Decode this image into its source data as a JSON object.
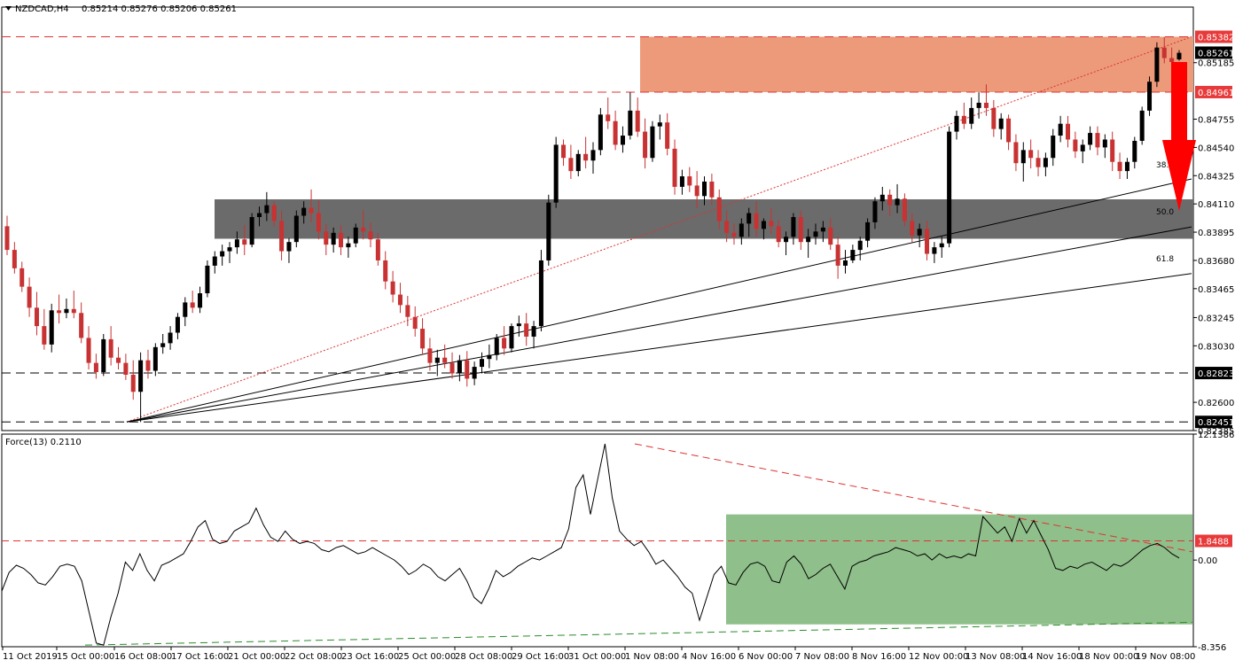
{
  "chart_data": [
    {
      "type": "candlestick",
      "title": "NZDCAD,H4",
      "ohlc_readout": "0.85214 0.85276 0.85206 0.85261",
      "ylim": [
        0.82385,
        0.85608
      ],
      "y_ticks": [
        "0.85382",
        "0.85261",
        "0.85185",
        "0.84961",
        "0.84755",
        "0.84540",
        "0.84325",
        "0.84110",
        "0.83895",
        "0.83680",
        "0.83465",
        "0.83245",
        "0.83030",
        "0.82823",
        "0.82600",
        "0.82451",
        "0.82385"
      ],
      "x_ticks": [
        "11 Oct 2019",
        "15 Oct 00:00",
        "16 Oct 08:00",
        "17 Oct 16:00",
        "21 Oct 00:00",
        "22 Oct 08:00",
        "23 Oct 16:00",
        "25 Oct 00:00",
        "28 Oct 08:00",
        "29 Oct 16:00",
        "31 Oct 00:00",
        "1 Nov 08:00",
        "4 Nov 16:00",
        "6 Nov 00:00",
        "7 Nov 08:00",
        "8 Nov 16:00",
        "12 Nov 00:00",
        "13 Nov 08:00",
        "14 Nov 16:00",
        "18 Nov 00:00",
        "19 Nov 08:00"
      ],
      "price_flags": [
        {
          "value": "0.85382",
          "color": "#e83a3a"
        },
        {
          "value": "0.85261",
          "color": "#000000"
        },
        {
          "value": "0.84961",
          "color": "#e83a3a"
        },
        {
          "value": "0.82823",
          "color": "#000000"
        },
        {
          "value": "0.82451",
          "color": "#000000"
        }
      ],
      "horizontal_levels": [
        0.85382,
        0.84961,
        0.82823,
        0.82451
      ],
      "zones": [
        {
          "name": "resistance-zone",
          "from": 0.84961,
          "to": 0.85382,
          "color": "#ec9a7a"
        },
        {
          "name": "support-zone",
          "from": 0.83845,
          "to": 0.84145,
          "color": "#6b6b6b"
        }
      ],
      "fib_labels": [
        "38.2",
        "50.0",
        "61.8"
      ],
      "candles": [
        [
          0.8394,
          0.8402,
          0.8372,
          0.8376
        ],
        [
          0.8376,
          0.8382,
          0.8358,
          0.8362
        ],
        [
          0.8362,
          0.8367,
          0.8344,
          0.8348
        ],
        [
          0.8348,
          0.8355,
          0.8325,
          0.8332
        ],
        [
          0.8332,
          0.8344,
          0.8311,
          0.8318
        ],
        [
          0.8318,
          0.8331,
          0.83,
          0.8304
        ],
        [
          0.8304,
          0.8335,
          0.8298,
          0.833
        ],
        [
          0.833,
          0.8342,
          0.832,
          0.8328
        ],
        [
          0.8328,
          0.8339,
          0.8324,
          0.8331
        ],
        [
          0.8331,
          0.8345,
          0.8324,
          0.8328
        ],
        [
          0.8328,
          0.8336,
          0.8305,
          0.8309
        ],
        [
          0.8309,
          0.8318,
          0.8285,
          0.829
        ],
        [
          0.829,
          0.8297,
          0.8278,
          0.8283
        ],
        [
          0.8283,
          0.8312,
          0.828,
          0.8308
        ],
        [
          0.8308,
          0.8318,
          0.8288,
          0.8294
        ],
        [
          0.8294,
          0.8302,
          0.8285,
          0.829
        ],
        [
          0.829,
          0.8297,
          0.8277,
          0.8281
        ],
        [
          0.8281,
          0.8292,
          0.8262,
          0.8268
        ],
        [
          0.8268,
          0.8298,
          0.8245,
          0.8292
        ],
        [
          0.8292,
          0.83,
          0.8278,
          0.8284
        ],
        [
          0.8284,
          0.8305,
          0.828,
          0.8302
        ],
        [
          0.8302,
          0.8312,
          0.8297,
          0.8305
        ],
        [
          0.8305,
          0.8318,
          0.83,
          0.8313
        ],
        [
          0.8313,
          0.8328,
          0.8308,
          0.8325
        ],
        [
          0.8325,
          0.834,
          0.8318,
          0.8336
        ],
        [
          0.8336,
          0.8345,
          0.8328,
          0.8332
        ],
        [
          0.8332,
          0.8348,
          0.8328,
          0.8343
        ],
        [
          0.8343,
          0.8368,
          0.834,
          0.8364
        ],
        [
          0.8364,
          0.8375,
          0.8358,
          0.8371
        ],
        [
          0.8371,
          0.838,
          0.8364,
          0.8375
        ],
        [
          0.8375,
          0.8382,
          0.8366,
          0.8378
        ],
        [
          0.8378,
          0.839,
          0.8373,
          0.8384
        ],
        [
          0.8384,
          0.8395,
          0.8372,
          0.838
        ],
        [
          0.838,
          0.8404,
          0.8378,
          0.8401
        ],
        [
          0.8401,
          0.8409,
          0.8394,
          0.8404
        ],
        [
          0.8404,
          0.842,
          0.8398,
          0.841
        ],
        [
          0.841,
          0.8413,
          0.8394,
          0.8398
        ],
        [
          0.8398,
          0.8406,
          0.8368,
          0.8375
        ],
        [
          0.8375,
          0.8385,
          0.8366,
          0.8382
        ],
        [
          0.8382,
          0.8406,
          0.8378,
          0.8402
        ],
        [
          0.8402,
          0.8413,
          0.8396,
          0.8408
        ],
        [
          0.8408,
          0.8422,
          0.8397,
          0.8404
        ],
        [
          0.8404,
          0.8414,
          0.8384,
          0.839
        ],
        [
          0.839,
          0.8396,
          0.8372,
          0.838
        ],
        [
          0.838,
          0.8393,
          0.8374,
          0.8389
        ],
        [
          0.8389,
          0.8395,
          0.8372,
          0.8378
        ],
        [
          0.8378,
          0.8386,
          0.837,
          0.8381
        ],
        [
          0.8381,
          0.8396,
          0.8378,
          0.8393
        ],
        [
          0.8393,
          0.8406,
          0.8384,
          0.839
        ],
        [
          0.839,
          0.8397,
          0.8378,
          0.8384
        ],
        [
          0.8384,
          0.8389,
          0.8364,
          0.8368
        ],
        [
          0.8368,
          0.8375,
          0.8346,
          0.8352
        ],
        [
          0.8352,
          0.836,
          0.8336,
          0.8342
        ],
        [
          0.8342,
          0.8351,
          0.8328,
          0.8334
        ],
        [
          0.8334,
          0.8341,
          0.8318,
          0.8325
        ],
        [
          0.8325,
          0.8333,
          0.831,
          0.8316
        ],
        [
          0.8316,
          0.8324,
          0.8296,
          0.8301
        ],
        [
          0.8301,
          0.8309,
          0.8284,
          0.829
        ],
        [
          0.829,
          0.83,
          0.828,
          0.8294
        ],
        [
          0.8294,
          0.8304,
          0.8286,
          0.829
        ],
        [
          0.829,
          0.8298,
          0.8278,
          0.8282
        ],
        [
          0.8282,
          0.8296,
          0.8276,
          0.8292
        ],
        [
          0.8292,
          0.8299,
          0.8272,
          0.8278
        ],
        [
          0.8278,
          0.8291,
          0.8273,
          0.8287
        ],
        [
          0.8287,
          0.8298,
          0.8282,
          0.8293
        ],
        [
          0.8293,
          0.8304,
          0.8286,
          0.8296
        ],
        [
          0.8296,
          0.8312,
          0.8292,
          0.8309
        ],
        [
          0.8309,
          0.8318,
          0.8296,
          0.8301
        ],
        [
          0.8301,
          0.832,
          0.8298,
          0.8318
        ],
        [
          0.8318,
          0.8326,
          0.831,
          0.832
        ],
        [
          0.832,
          0.8328,
          0.8303,
          0.831
        ],
        [
          0.831,
          0.8322,
          0.8301,
          0.8318
        ],
        [
          0.8318,
          0.8376,
          0.8314,
          0.8368
        ],
        [
          0.8368,
          0.8418,
          0.8364,
          0.8412
        ],
        [
          0.8412,
          0.8462,
          0.8408,
          0.8456
        ],
        [
          0.8456,
          0.846,
          0.844,
          0.8446
        ],
        [
          0.8446,
          0.8456,
          0.843,
          0.8436
        ],
        [
          0.8436,
          0.8452,
          0.8432,
          0.8449
        ],
        [
          0.8449,
          0.8462,
          0.8438,
          0.8444
        ],
        [
          0.8444,
          0.8458,
          0.8434,
          0.8452
        ],
        [
          0.8452,
          0.8484,
          0.8448,
          0.8479
        ],
        [
          0.8479,
          0.8492,
          0.8468,
          0.8474
        ],
        [
          0.8474,
          0.8482,
          0.8452,
          0.8456
        ],
        [
          0.8456,
          0.847,
          0.845,
          0.8463
        ],
        [
          0.8463,
          0.8496,
          0.846,
          0.8482
        ],
        [
          0.8482,
          0.8492,
          0.8462,
          0.8466
        ],
        [
          0.8466,
          0.8476,
          0.8438,
          0.8446
        ],
        [
          0.8446,
          0.8474,
          0.8443,
          0.847
        ],
        [
          0.847,
          0.8479,
          0.846,
          0.8473
        ],
        [
          0.8473,
          0.848,
          0.8448,
          0.8453
        ],
        [
          0.8453,
          0.846,
          0.8418,
          0.8424
        ],
        [
          0.8424,
          0.8437,
          0.8418,
          0.8432
        ],
        [
          0.8432,
          0.8439,
          0.842,
          0.8425
        ],
        [
          0.8425,
          0.8436,
          0.8408,
          0.8417
        ],
        [
          0.8417,
          0.8432,
          0.841,
          0.8428
        ],
        [
          0.8428,
          0.8434,
          0.841,
          0.8416
        ],
        [
          0.8416,
          0.8422,
          0.8392,
          0.8398
        ],
        [
          0.8398,
          0.8406,
          0.8382,
          0.8389
        ],
        [
          0.8389,
          0.8396,
          0.838,
          0.8386
        ],
        [
          0.8386,
          0.84,
          0.838,
          0.8396
        ],
        [
          0.8396,
          0.8408,
          0.8386,
          0.8404
        ],
        [
          0.8404,
          0.8413,
          0.8386,
          0.8392
        ],
        [
          0.8392,
          0.84,
          0.8384,
          0.8398
        ],
        [
          0.8398,
          0.8408,
          0.8388,
          0.8394
        ],
        [
          0.8394,
          0.8399,
          0.8378,
          0.8382
        ],
        [
          0.8382,
          0.839,
          0.8372,
          0.8386
        ],
        [
          0.8386,
          0.8404,
          0.838,
          0.8401
        ],
        [
          0.8401,
          0.8406,
          0.8376,
          0.8382
        ],
        [
          0.8382,
          0.8392,
          0.837,
          0.8386
        ],
        [
          0.8386,
          0.8396,
          0.838,
          0.839
        ],
        [
          0.839,
          0.8398,
          0.8382,
          0.8393
        ],
        [
          0.8393,
          0.84,
          0.8376,
          0.838
        ],
        [
          0.838,
          0.8386,
          0.8354,
          0.8364
        ],
        [
          0.8364,
          0.8376,
          0.8358,
          0.8368
        ],
        [
          0.8368,
          0.838,
          0.8366,
          0.8376
        ],
        [
          0.8376,
          0.8386,
          0.8368,
          0.8383
        ],
        [
          0.8383,
          0.84,
          0.8378,
          0.8397
        ],
        [
          0.8397,
          0.8416,
          0.8392,
          0.8413
        ],
        [
          0.8413,
          0.8424,
          0.8406,
          0.8418
        ],
        [
          0.8418,
          0.8422,
          0.8402,
          0.841
        ],
        [
          0.841,
          0.8426,
          0.8404,
          0.8415
        ],
        [
          0.8415,
          0.8419,
          0.8394,
          0.8398
        ],
        [
          0.8398,
          0.8404,
          0.8382,
          0.8387
        ],
        [
          0.8387,
          0.8396,
          0.8378,
          0.8392
        ],
        [
          0.8392,
          0.8398,
          0.8368,
          0.8373
        ],
        [
          0.8373,
          0.8382,
          0.8366,
          0.8378
        ],
        [
          0.8378,
          0.8386,
          0.837,
          0.8381
        ],
        [
          0.8381,
          0.847,
          0.8378,
          0.8466
        ],
        [
          0.8466,
          0.8482,
          0.846,
          0.8478
        ],
        [
          0.8478,
          0.8488,
          0.8468,
          0.8472
        ],
        [
          0.8472,
          0.8492,
          0.8468,
          0.8484
        ],
        [
          0.8484,
          0.8496,
          0.8476,
          0.8488
        ],
        [
          0.8488,
          0.8502,
          0.8478,
          0.8484
        ],
        [
          0.8484,
          0.849,
          0.8462,
          0.8468
        ],
        [
          0.8468,
          0.848,
          0.846,
          0.8476
        ],
        [
          0.8476,
          0.8479,
          0.8452,
          0.8458
        ],
        [
          0.8458,
          0.8464,
          0.8436,
          0.8442
        ],
        [
          0.8442,
          0.8458,
          0.8428,
          0.8452
        ],
        [
          0.8452,
          0.846,
          0.8438,
          0.8446
        ],
        [
          0.8446,
          0.8452,
          0.8432,
          0.8439
        ],
        [
          0.8439,
          0.845,
          0.8432,
          0.8446
        ],
        [
          0.8446,
          0.8468,
          0.844,
          0.8463
        ],
        [
          0.8463,
          0.8478,
          0.8458,
          0.8472
        ],
        [
          0.8472,
          0.8478,
          0.8454,
          0.846
        ],
        [
          0.846,
          0.8466,
          0.8446,
          0.8451
        ],
        [
          0.8451,
          0.846,
          0.8442,
          0.8456
        ],
        [
          0.8456,
          0.847,
          0.8452,
          0.8465
        ],
        [
          0.8465,
          0.847,
          0.8448,
          0.8454
        ],
        [
          0.8454,
          0.8464,
          0.8446,
          0.846
        ],
        [
          0.846,
          0.8466,
          0.8436,
          0.8443
        ],
        [
          0.8443,
          0.845,
          0.843,
          0.8436
        ],
        [
          0.8436,
          0.8446,
          0.843,
          0.8443
        ],
        [
          0.8443,
          0.8462,
          0.8438,
          0.8459
        ],
        [
          0.8459,
          0.8485,
          0.8456,
          0.8482
        ],
        [
          0.8482,
          0.8508,
          0.8478,
          0.8504
        ],
        [
          0.8504,
          0.8534,
          0.85,
          0.853
        ],
        [
          0.853,
          0.8538,
          0.8518,
          0.8522
        ],
        [
          0.8522,
          0.853,
          0.8516,
          0.8519
        ],
        [
          0.8521,
          0.8528,
          0.852,
          0.8526
        ]
      ],
      "force_index": {
        "title": "Force(13) 0.2110",
        "ylim": [
          -8.356,
          12.1386
        ],
        "y_ticks": [
          "12.1386",
          "0.00",
          "-8.356"
        ],
        "flag": {
          "value": "1.8488",
          "color": "#e83a3a"
        },
        "level": 1.8488,
        "zone": {
          "name": "force-zone",
          "from": -6.2,
          "to": 4.4,
          "color": "#8fbf8a"
        },
        "values": [
          -3.0,
          -1.2,
          -0.5,
          -0.8,
          -1.4,
          -2.2,
          -2.4,
          -1.6,
          -0.6,
          -0.4,
          -0.6,
          -2.0,
          -5.0,
          -8.0,
          -8.2,
          -5.5,
          -3.2,
          -0.2,
          -1.0,
          0.6,
          -1.0,
          -2.0,
          -0.5,
          -0.2,
          0.2,
          0.6,
          1.8,
          3.2,
          3.8,
          2.0,
          1.6,
          1.8,
          2.8,
          3.2,
          3.6,
          5.0,
          3.4,
          2.2,
          1.8,
          2.8,
          2.0,
          1.6,
          1.8,
          1.6,
          1.0,
          0.8,
          1.2,
          1.4,
          1.0,
          0.6,
          0.8,
          1.2,
          0.8,
          0.4,
          0.0,
          -0.6,
          -1.4,
          -1.0,
          -0.4,
          -0.8,
          -1.6,
          -2.0,
          -1.4,
          -0.8,
          -2.0,
          -3.6,
          -4.2,
          -2.8,
          -1.0,
          -1.6,
          -1.2,
          -0.6,
          -0.2,
          0.2,
          0.0,
          0.4,
          0.8,
          1.2,
          3.0,
          7.0,
          8.2,
          4.4,
          7.8,
          11.2,
          6.0,
          2.8,
          2.0,
          1.4,
          1.8,
          0.8,
          -0.4,
          0.0,
          -0.8,
          -1.6,
          -2.6,
          -3.2,
          -5.8,
          -3.6,
          -1.4,
          -0.6,
          -2.2,
          -2.4,
          -1.2,
          -0.4,
          -0.2,
          -0.6,
          -2.0,
          -2.2,
          -0.2,
          0.4,
          -0.4,
          -1.8,
          -1.4,
          -0.8,
          -0.4,
          -1.6,
          -2.8,
          -0.6,
          -0.2,
          0.0,
          0.4,
          0.6,
          0.8,
          1.2,
          1.0,
          0.8,
          0.4,
          0.6,
          0.0,
          0.6,
          0.2,
          0.4,
          0.2,
          0.6,
          0.4,
          4.2,
          3.4,
          2.6,
          3.2,
          1.8,
          4.0,
          2.6,
          3.8,
          2.4,
          1.0,
          -0.8,
          -1.0,
          -0.6,
          -0.8,
          -0.4,
          -0.2,
          -0.6,
          -1.0,
          -0.4,
          -0.6,
          -0.2,
          0.4,
          1.0,
          1.4,
          1.6,
          1.2,
          0.6,
          0.2
        ]
      }
    }
  ]
}
